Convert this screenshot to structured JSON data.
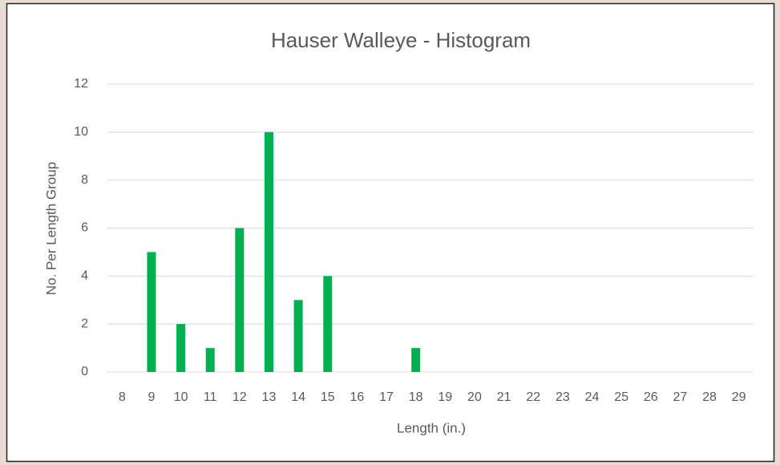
{
  "chart_data": {
    "type": "bar",
    "title": "Hauser Walleye - Histogram",
    "x_label": "Length (in.)",
    "y_label": "No. Per Length Group",
    "categories": [
      8,
      9,
      10,
      11,
      12,
      13,
      14,
      15,
      16,
      17,
      18,
      19,
      20,
      21,
      22,
      23,
      24,
      25,
      26,
      27,
      28,
      29
    ],
    "values": [
      0,
      5,
      2,
      1,
      6,
      10,
      3,
      4,
      0,
      0,
      1,
      0,
      0,
      0,
      0,
      0,
      0,
      0,
      0,
      0,
      0,
      0
    ],
    "color": "#00b050",
    "ylim": [
      0,
      12
    ],
    "yticks": [
      0,
      2,
      4,
      6,
      8,
      10,
      12
    ],
    "grid": true
  }
}
